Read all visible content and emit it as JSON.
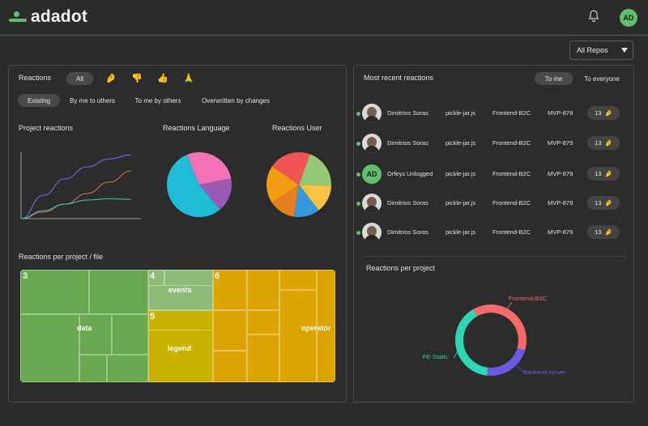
{
  "app": {
    "logo_text": "adadot",
    "user_initials": "AD"
  },
  "icons": {
    "notification": "bell-icon",
    "dropdown": "chevron-down-icon"
  },
  "colors": {
    "brand_green": "#5fbf6b",
    "accent_line": "#3a6a44"
  },
  "repo_select": {
    "value": "All Repos"
  },
  "left_panel": {
    "title": "Reactions",
    "filter_all": "All",
    "reaction_icons": [
      "🤌",
      "👎",
      "👍",
      "🙏"
    ],
    "tabs": [
      "Existing",
      "By me to others",
      "To me by others",
      "Overwritten by changes"
    ],
    "active_tab": "Existing",
    "project_reactions_title": "Project reactions",
    "language_title": "Reactions Language",
    "user_title": "Reactions User",
    "treemap_title": "Reactions per project / file",
    "treemap": {
      "groups": [
        {
          "number": "3",
          "label": "data",
          "color": "#6aa84f"
        },
        {
          "number": "4",
          "label": "events",
          "color": "#8fbb78"
        },
        {
          "number": "5",
          "label": "legend",
          "color": "#c9b300"
        },
        {
          "number": "6",
          "label": "operator",
          "color": "#dba400"
        }
      ]
    }
  },
  "right_panel": {
    "title": "Most recent reactions",
    "tab_to_me": "To me",
    "tab_to_everyone": "To everyone",
    "active_tab": "To me",
    "rows": [
      {
        "name": "Dimitrios Soras",
        "file": "pickle-jar.js",
        "project": "Frontend-B2C",
        "ticket": "MVP-879",
        "count": "13",
        "emoji": "🤌",
        "avatar": "photo"
      },
      {
        "name": "Dimitrios Soras",
        "file": "pickle-jar.js",
        "project": "Frontend-B2C",
        "ticket": "MVP-879",
        "count": "13",
        "emoji": "🤌",
        "avatar": "photo"
      },
      {
        "name": "Orfeys Unlogged",
        "file": "pickle-jar.js",
        "project": "Frontend-B2C",
        "ticket": "MVP-879",
        "count": "13",
        "emoji": "🤌",
        "avatar": "AD"
      },
      {
        "name": "Dimitrios Soras",
        "file": "pickle-jar.js",
        "project": "Frontend-B2C",
        "ticket": "MVP-879",
        "count": "13",
        "emoji": "🤌",
        "avatar": "photo"
      },
      {
        "name": "Dimitrios Soras",
        "file": "pickle-jar.js",
        "project": "Frontend-B2C",
        "ticket": "MVP-879",
        "count": "13",
        "emoji": "🤌",
        "avatar": "photo"
      }
    ],
    "donut_title": "Reactions per project",
    "donut": [
      {
        "label": "Frontend-B2C",
        "color": "#f26b6b"
      },
      {
        "label": "Backend-server",
        "color": "#6b5be0"
      },
      {
        "label": "FE-Static",
        "color": "#2fd6b3"
      }
    ]
  },
  "chart_data": [
    {
      "type": "line",
      "title": "Project reactions",
      "series": [
        {
          "color": "#7b68ee",
          "values": [
            0,
            0.35,
            0.6,
            0.78,
            0.9,
            0.96
          ]
        },
        {
          "color": "#e66b5b",
          "values": [
            0,
            0.1,
            0.22,
            0.38,
            0.55,
            0.72
          ]
        },
        {
          "color": "#3cc9a8",
          "values": [
            0,
            0.12,
            0.22,
            0.28,
            0.3,
            0.29
          ]
        }
      ]
    },
    {
      "type": "pie",
      "title": "Reactions Language",
      "slices": [
        {
          "value": 55,
          "color": "#1fbad6"
        },
        {
          "value": 28,
          "color": "#f472b6"
        },
        {
          "value": 17,
          "color": "#9b59b6"
        }
      ]
    },
    {
      "type": "pie",
      "title": "Reactions User",
      "slices": [
        {
          "value": 20,
          "color": "#94c973"
        },
        {
          "value": 14,
          "color": "#f6c244"
        },
        {
          "value": 13,
          "color": "#3498db"
        },
        {
          "value": 13,
          "color": "#e67e22"
        },
        {
          "value": 19,
          "color": "#f39c12"
        },
        {
          "value": 21,
          "color": "#f05454"
        }
      ]
    },
    {
      "type": "pie",
      "title": "Reactions per project",
      "slices": [
        {
          "label": "Frontend-B2C",
          "value": 38,
          "color": "#f26b6b"
        },
        {
          "label": "Backend-server",
          "value": 22,
          "color": "#6b5be0"
        },
        {
          "label": "FE-Static",
          "value": 40,
          "color": "#2fd6b3"
        }
      ]
    }
  ]
}
